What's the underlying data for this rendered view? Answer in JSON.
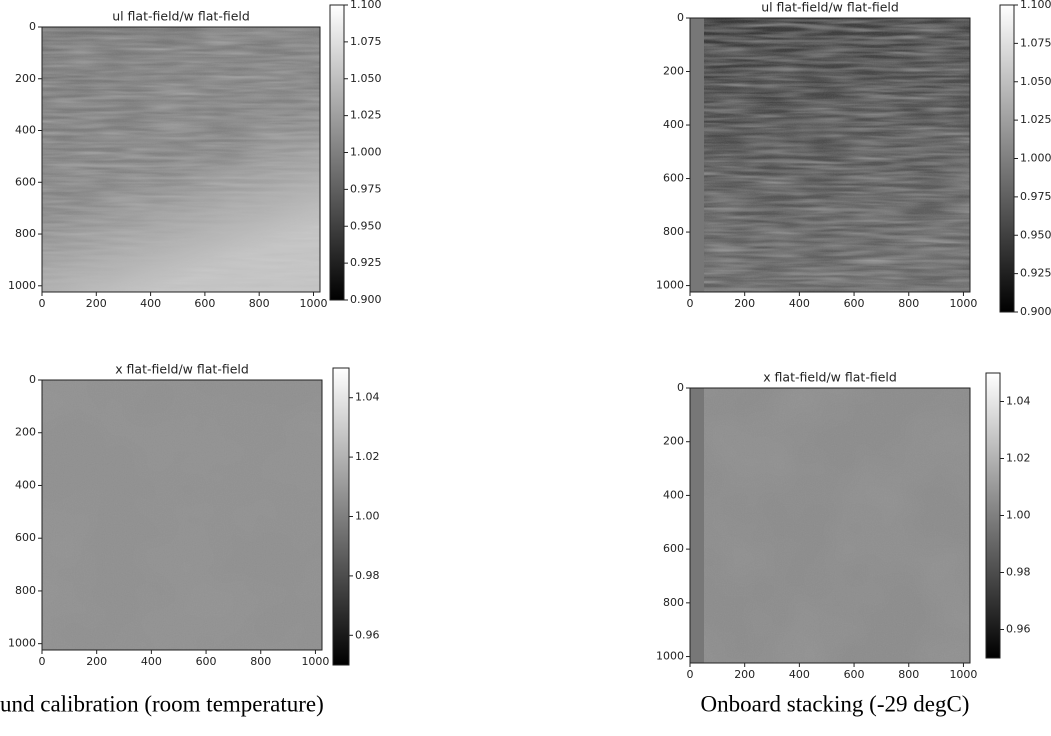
{
  "chart_data": [
    {
      "type": "heatmap",
      "title": "ul flat-field/w flat-field",
      "xlim": [
        0,
        1024
      ],
      "xticks": [
        0,
        200,
        400,
        600,
        800,
        1000
      ],
      "ylim": [
        1024,
        0
      ],
      "yticks": [
        0,
        200,
        400,
        600,
        800,
        1000
      ],
      "colorbar": {
        "lim": [
          0.9,
          1.1
        ],
        "ticks": [
          {
            "value": 0.9,
            "label": "0.900"
          },
          0.925,
          {
            "value": 0.95,
            "label": "0.950"
          },
          0.975,
          {
            "value": 1,
            "label": "1.000"
          },
          1.025,
          {
            "value": 1.05,
            "label": "1.050"
          },
          1.075,
          {
            "value": 1.1,
            "label": "1.100"
          }
        ]
      }
    },
    {
      "type": "heatmap",
      "title": "ul flat-field/w flat-field",
      "xlim": [
        0,
        1024
      ],
      "xticks": [
        0,
        200,
        400,
        600,
        800,
        1000
      ],
      "ylim": [
        1024,
        0
      ],
      "yticks": [
        0,
        200,
        400,
        600,
        800,
        1000
      ],
      "colorbar": {
        "lim": [
          0.9,
          1.1
        ],
        "ticks": [
          {
            "value": 0.9,
            "label": "0.900"
          },
          0.925,
          {
            "value": 0.95,
            "label": "0.950"
          },
          0.975,
          {
            "value": 1,
            "label": "1.000"
          },
          1.025,
          {
            "value": 1.05,
            "label": "1.050"
          },
          1.075,
          {
            "value": 1.1,
            "label": "1.100"
          }
        ]
      }
    },
    {
      "type": "heatmap",
      "title": "x flat-field/w flat-field",
      "xlim": [
        0,
        1024
      ],
      "xticks": [
        0,
        200,
        400,
        600,
        800,
        1000
      ],
      "ylim": [
        1024,
        0
      ],
      "yticks": [
        0,
        200,
        400,
        600,
        800,
        1000
      ],
      "colorbar": {
        "lim": [
          0.95,
          1.05
        ],
        "ticks": [
          0.96,
          0.98,
          {
            "value": 1,
            "label": "1.00"
          },
          1.02,
          1.04
        ]
      }
    },
    {
      "type": "heatmap",
      "title": "x flat-field/w flat-field",
      "xlim": [
        0,
        1024
      ],
      "xticks": [
        0,
        200,
        400,
        600,
        800,
        1000
      ],
      "ylim": [
        1024,
        0
      ],
      "yticks": [
        0,
        200,
        400,
        600,
        800,
        1000
      ],
      "colorbar": {
        "lim": [
          0.95,
          1.05
        ],
        "ticks": [
          0.96,
          0.98,
          {
            "value": 1,
            "label": "1.00"
          },
          1.02,
          1.04
        ]
      }
    }
  ],
  "captions": [
    "und calibration (room temperature)",
    "Onboard stacking (-29 degC)"
  ]
}
